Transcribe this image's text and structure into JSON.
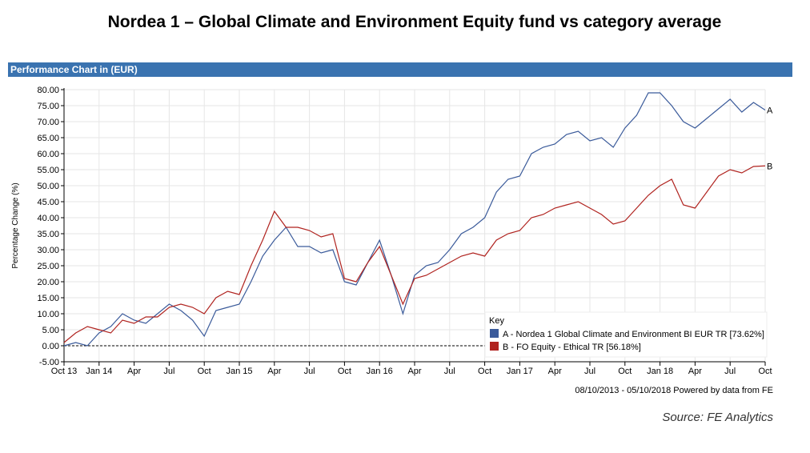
{
  "title": "Nordea 1 – Global Climate and Environment Equity fund vs category average",
  "panel_title": "Performance Chart in (EUR)",
  "date_range": "08/10/2013 - 05/10/2018 Powered by data from FE",
  "source": "Source: FE Analytics",
  "chart_data": {
    "type": "line",
    "ylabel": "Percentage Change (%)",
    "ylim": [
      -5,
      80
    ],
    "yticks": [
      "-5.00",
      "0.00",
      "5.00",
      "10.00",
      "15.00",
      "20.00",
      "25.00",
      "30.00",
      "35.00",
      "40.00",
      "45.00",
      "50.00",
      "55.00",
      "60.00",
      "65.00",
      "70.00",
      "75.00",
      "80.00"
    ],
    "xtick_labels": [
      "Oct 13",
      "Jan 14",
      "Apr",
      "Jul",
      "Oct",
      "Jan 15",
      "Apr",
      "Jul",
      "Oct",
      "Jan 16",
      "Apr",
      "Jul",
      "Oct",
      "Jan 17",
      "Apr",
      "Jul",
      "Oct",
      "Jan 18",
      "Apr",
      "Jul",
      "Oct"
    ],
    "x": [
      "2013-10",
      "2013-11",
      "2013-12",
      "2014-01",
      "2014-02",
      "2014-03",
      "2014-04",
      "2014-05",
      "2014-06",
      "2014-07",
      "2014-08",
      "2014-09",
      "2014-10",
      "2014-11",
      "2014-12",
      "2015-01",
      "2015-02",
      "2015-03",
      "2015-04",
      "2015-05",
      "2015-06",
      "2015-07",
      "2015-08",
      "2015-09",
      "2015-10",
      "2015-11",
      "2015-12",
      "2016-01",
      "2016-02",
      "2016-03",
      "2016-04",
      "2016-05",
      "2016-06",
      "2016-07",
      "2016-08",
      "2016-09",
      "2016-10",
      "2016-11",
      "2016-12",
      "2017-01",
      "2017-02",
      "2017-03",
      "2017-04",
      "2017-05",
      "2017-06",
      "2017-07",
      "2017-08",
      "2017-09",
      "2017-10",
      "2017-11",
      "2017-12",
      "2018-01",
      "2018-02",
      "2018-03",
      "2018-04",
      "2018-05",
      "2018-06",
      "2018-07",
      "2018-08",
      "2018-09",
      "2018-10"
    ],
    "grid": true,
    "legend_title": "Key",
    "legend_position": "bottom-right",
    "series": [
      {
        "name": "A - Nordea 1 Global Climate and Environment BI EUR TR [73.62%]",
        "end_label": "A",
        "color": "#3a5a9a",
        "values": [
          0,
          1,
          0,
          4,
          6,
          10,
          8,
          7,
          10,
          13,
          11,
          8,
          3,
          11,
          12,
          13,
          20,
          28,
          33,
          37,
          31,
          31,
          29,
          30,
          20,
          19,
          26,
          33,
          22,
          10,
          22,
          25,
          26,
          30,
          35,
          37,
          40,
          48,
          52,
          53,
          60,
          62,
          63,
          66,
          67,
          64,
          65,
          62,
          68,
          72,
          79,
          79,
          75,
          70,
          68,
          71,
          74,
          77,
          73,
          76,
          73.62
        ]
      },
      {
        "name": "B - FO Equity - Ethical TR [56.18%]",
        "end_label": "B",
        "color": "#b0231f",
        "values": [
          1,
          4,
          6,
          5,
          4,
          8,
          7,
          9,
          9,
          12,
          13,
          12,
          10,
          15,
          17,
          16,
          25,
          33,
          42,
          37,
          37,
          36,
          34,
          35,
          21,
          20,
          26,
          31,
          22,
          13,
          21,
          22,
          24,
          26,
          28,
          29,
          28,
          33,
          35,
          36,
          40,
          41,
          43,
          44,
          45,
          43,
          41,
          38,
          39,
          43,
          47,
          50,
          52,
          44,
          43,
          48,
          53,
          55,
          54,
          56,
          56.18
        ]
      }
    ]
  }
}
